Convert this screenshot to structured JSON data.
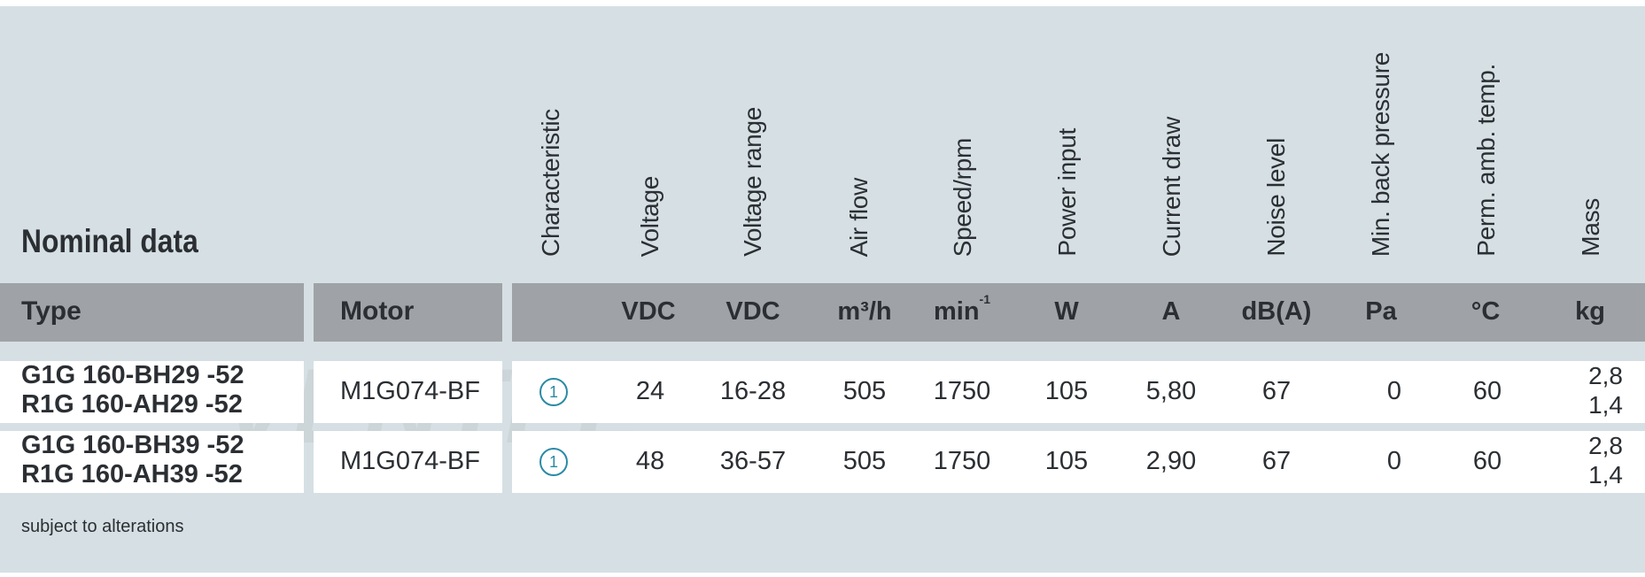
{
  "section_title": "Nominal data",
  "column_headers": {
    "characteristic": "Characteristic",
    "voltage": "Voltage",
    "voltage_range": "Voltage range",
    "air_flow": "Air flow",
    "speed": "Speed/rpm",
    "power_input": "Power input",
    "current_draw": "Current draw",
    "noise_level": "Noise level",
    "min_back_pressure": "Min. back pressure",
    "perm_amb_temp": "Perm. amb. temp.",
    "mass": "Mass"
  },
  "units": {
    "type_label": "Type",
    "motor_label": "Motor",
    "voltage": "VDC",
    "voltage_range": "VDC",
    "air_flow": "m³/h",
    "speed_base": "min",
    "speed_exp": "-1",
    "power_input": "W",
    "current_draw": "A",
    "noise_level": "dB(A)",
    "min_back_pressure": "Pa",
    "perm_amb_temp": "°C",
    "mass": "kg"
  },
  "rows": [
    {
      "type_1": "G1G 160-BH29  -52",
      "type_2": "R1G 160-AH29  -52",
      "motor": "M1G074-BF",
      "characteristic": "1",
      "voltage": "24",
      "voltage_range": "16-28",
      "air_flow": "505",
      "speed": "1750",
      "power_input": "105",
      "current_draw": "5,80",
      "noise_level": "67",
      "min_back_pressure": "0",
      "perm_amb_temp": "60",
      "mass_1": "2,8",
      "mass_2": "1,4"
    },
    {
      "type_1": "G1G 160-BH39  -52",
      "type_2": "R1G 160-AH39  -52",
      "motor": "M1G074-BF",
      "characteristic": "1",
      "voltage": "48",
      "voltage_range": "36-57",
      "air_flow": "505",
      "speed": "1750",
      "power_input": "105",
      "current_draw": "2,90",
      "noise_level": "67",
      "min_back_pressure": "0",
      "perm_amb_temp": "60",
      "mass_1": "2,8",
      "mass_2": "1,4"
    }
  ],
  "footnote": "subject to alterations",
  "watermark_text": "VENTEL",
  "colors": {
    "panel": "#d6e0e4",
    "unit_bar": "#9fa2a6",
    "row": "#ffffff",
    "text": "#2b2f33",
    "accent": "#2a8aa6"
  }
}
